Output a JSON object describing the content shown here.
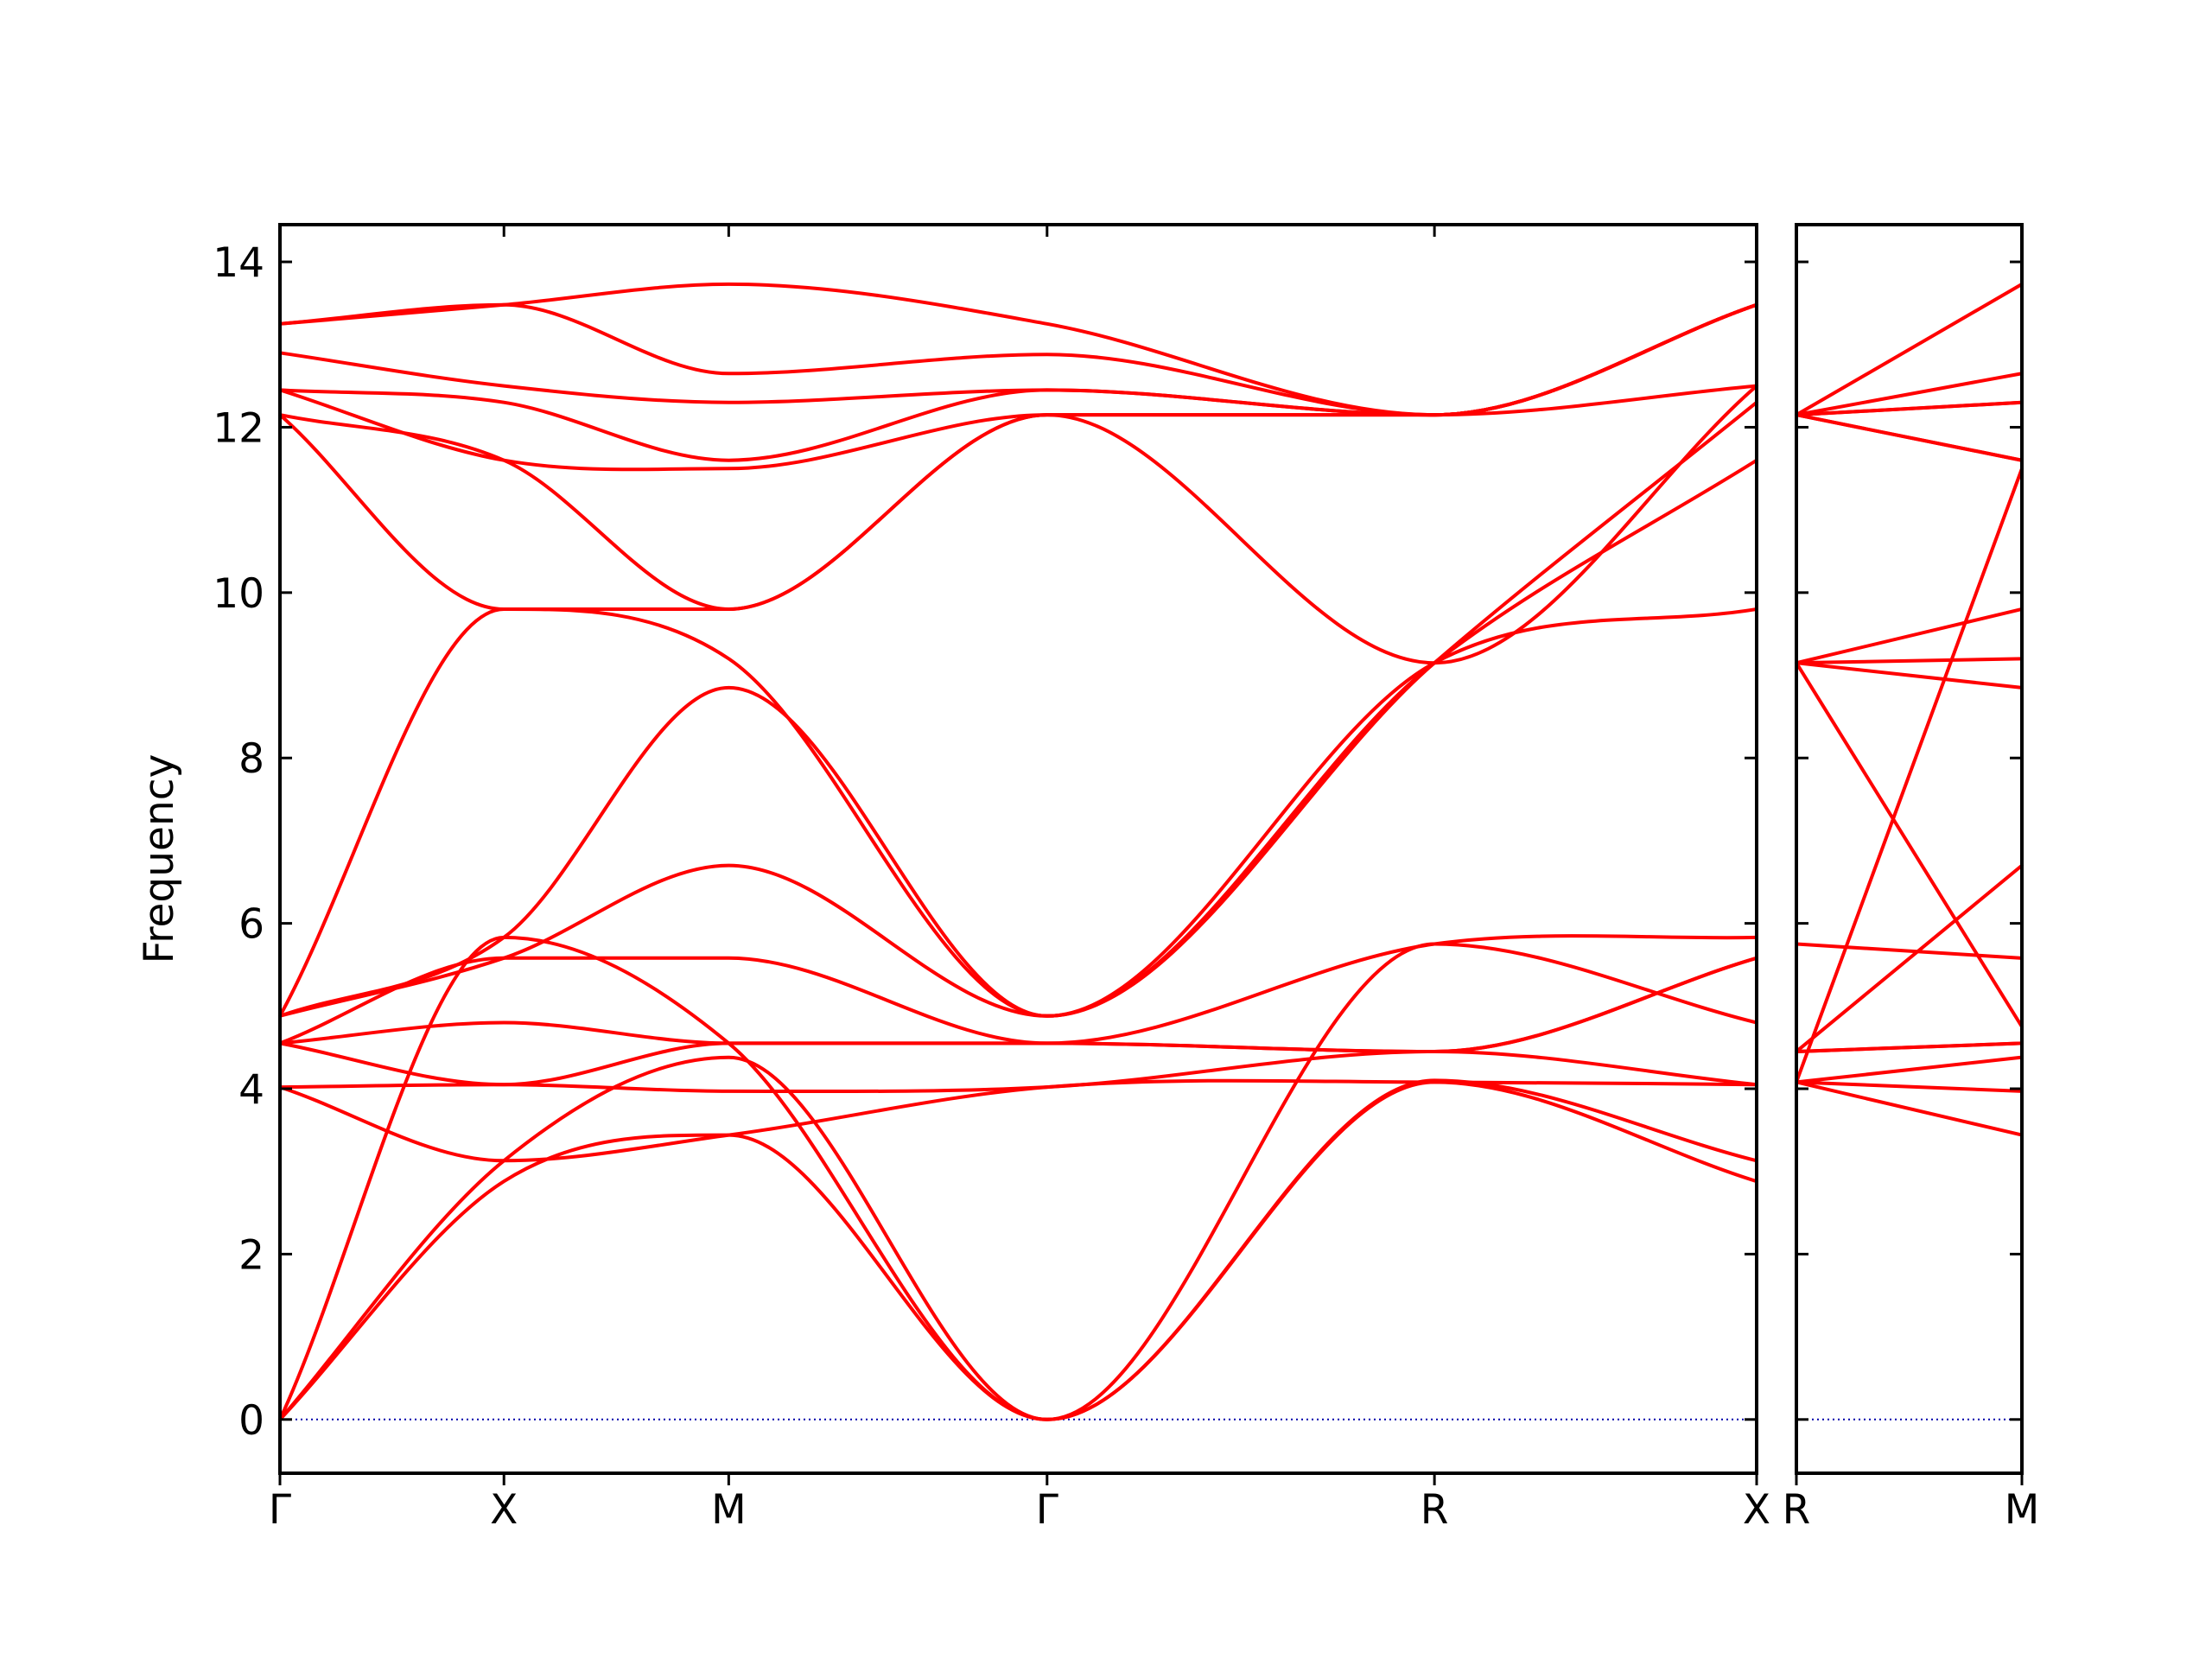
{
  "chart_data": {
    "type": "line",
    "ylabel": "Frequency",
    "xlabel": "",
    "title": "",
    "ylim": [
      -0.65,
      14.45
    ],
    "yticks": [
      0,
      2,
      4,
      6,
      8,
      10,
      12,
      14
    ],
    "line_color": "#ff0000",
    "zero_line_color": "#0000aa",
    "grid": false,
    "panels": [
      {
        "name": "main",
        "xlim": [
          0,
          3.85
        ],
        "high_symmetry_points": [
          {
            "label": "Γ",
            "x": 0
          },
          {
            "label": "X",
            "x": 0.584
          },
          {
            "label": "M",
            "x": 1.17
          },
          {
            "label": "Γ",
            "x": 2.0
          },
          {
            "label": "R",
            "x": 3.01
          },
          {
            "label": "X",
            "x": 3.85
          }
        ],
        "bands": [
          {
            "x": [
              0,
              0.584,
              1.17,
              2.0,
              3.01,
              3.85
            ],
            "y": [
              0,
              2.88,
              3.44,
              0,
              4.08,
              2.88
            ]
          },
          {
            "x": [
              0,
              0.584,
              1.17,
              2.0,
              3.01,
              3.85
            ],
            "y": [
              0,
              3.13,
              4.38,
              0,
              4.1,
              3.13
            ]
          },
          {
            "x": [
              0,
              0.584,
              1.17,
              2.0,
              3.01,
              3.85
            ],
            "y": [
              0,
              5.83,
              4.55,
              0,
              5.75,
              4.8
            ]
          },
          {
            "x": [
              0,
              0.584,
              1.17,
              2.0,
              3.01,
              3.85
            ],
            "y": [
              4.02,
              3.13,
              3.44,
              4.02,
              4.08,
              4.05
            ]
          },
          {
            "x": [
              0,
              0.584,
              1.17,
              2.0,
              3.01,
              3.85
            ],
            "y": [
              4.02,
              4.05,
              3.97,
              4.02,
              4.45,
              4.05
            ]
          },
          {
            "x": [
              0,
              0.584,
              1.17,
              2.0,
              3.01,
              3.85
            ],
            "y": [
              4.55,
              4.05,
              4.55,
              4.55,
              4.45,
              5.58
            ]
          },
          {
            "x": [
              0,
              0.584,
              1.17,
              2.0,
              3.01,
              3.85
            ],
            "y": [
              4.55,
              4.8,
              4.55,
              4.55,
              4.45,
              5.58
            ]
          },
          {
            "x": [
              0,
              0.584,
              1.17,
              2.0,
              3.01,
              3.85
            ],
            "y": [
              4.55,
              5.58,
              5.58,
              4.55,
              5.75,
              5.83
            ]
          },
          {
            "x": [
              0,
              0.584,
              1.17,
              2.0,
              3.01,
              3.85
            ],
            "y": [
              4.88,
              5.58,
              6.7,
              4.88,
              9.15,
              9.8
            ]
          },
          {
            "x": [
              0,
              0.584,
              1.17,
              2.0,
              3.01,
              3.85
            ],
            "y": [
              4.88,
              5.83,
              8.85,
              4.88,
              9.15,
              11.6
            ]
          },
          {
            "x": [
              0,
              0.584,
              1.17,
              2.0,
              3.01,
              3.85
            ],
            "y": [
              4.88,
              9.8,
              9.2,
              4.88,
              9.15,
              12.3
            ]
          },
          {
            "x": [
              0,
              0.584,
              1.17,
              2.0,
              3.01,
              3.85
            ],
            "y": [
              12.15,
              9.8,
              9.8,
              12.15,
              9.15,
              12.5
            ]
          },
          {
            "x": [
              0,
              0.584,
              1.17,
              2.0,
              3.01,
              3.85
            ],
            "y": [
              12.15,
              11.6,
              9.8,
              12.15,
              12.15,
              12.5
            ]
          },
          {
            "x": [
              0,
              0.584,
              1.17,
              2.0,
              3.01,
              3.85
            ],
            "y": [
              12.45,
              11.6,
              11.5,
              12.15,
              12.15,
              13.48
            ]
          },
          {
            "x": [
              0,
              0.584,
              1.17,
              2.0,
              3.01,
              3.85
            ],
            "y": [
              12.45,
              12.3,
              11.6,
              12.45,
              12.15,
              13.48
            ]
          },
          {
            "x": [
              0,
              0.584,
              1.17,
              2.0,
              3.01,
              3.85
            ],
            "y": [
              12.9,
              12.5,
              12.3,
              12.45,
              12.15,
              13.48
            ]
          },
          {
            "x": [
              0,
              0.584,
              1.17,
              2.0,
              3.01,
              3.85
            ],
            "y": [
              13.25,
              13.48,
              12.65,
              12.88,
              12.15,
              13.48
            ]
          },
          {
            "x": [
              0,
              0.584,
              1.17,
              2.0,
              3.01,
              3.85
            ],
            "y": [
              13.25,
              13.48,
              13.73,
              13.25,
              12.15,
              13.48
            ]
          }
        ]
      },
      {
        "name": "right",
        "xlim": [
          0,
          0.584
        ],
        "high_symmetry_points": [
          {
            "label": "R",
            "x": 0
          },
          {
            "label": "M",
            "x": 0.584
          }
        ],
        "bands": [
          {
            "x": [
              0,
              0.584
            ],
            "y": [
              4.08,
              3.44
            ]
          },
          {
            "x": [
              0,
              0.584
            ],
            "y": [
              4.08,
              3.97
            ]
          },
          {
            "x": [
              0,
              0.584
            ],
            "y": [
              4.08,
              4.38
            ]
          },
          {
            "x": [
              0,
              0.584
            ],
            "y": [
              4.45,
              4.55
            ]
          },
          {
            "x": [
              0,
              0.584
            ],
            "y": [
              4.45,
              4.55
            ]
          },
          {
            "x": [
              0,
              0.584
            ],
            "y": [
              4.45,
              6.7
            ]
          },
          {
            "x": [
              0,
              0.584
            ],
            "y": [
              5.75,
              5.58
            ]
          },
          {
            "x": [
              0,
              0.584
            ],
            "y": [
              9.15,
              4.75
            ]
          },
          {
            "x": [
              0,
              0.584
            ],
            "y": [
              9.15,
              8.85
            ]
          },
          {
            "x": [
              0,
              0.584
            ],
            "y": [
              9.15,
              9.2
            ]
          },
          {
            "x": [
              0,
              0.584
            ],
            "y": [
              9.15,
              9.8
            ]
          },
          {
            "x": [
              0,
              0.584
            ],
            "y": [
              4.08,
              11.5
            ]
          },
          {
            "x": [
              0,
              0.584
            ],
            "y": [
              12.15,
              11.6
            ]
          },
          {
            "x": [
              0,
              0.584
            ],
            "y": [
              12.15,
              11.6
            ]
          },
          {
            "x": [
              0,
              0.584
            ],
            "y": [
              12.15,
              12.3
            ]
          },
          {
            "x": [
              0,
              0.584
            ],
            "y": [
              12.15,
              12.65
            ]
          },
          {
            "x": [
              0,
              0.584
            ],
            "y": [
              12.15,
              13.73
            ]
          },
          {
            "x": [
              0,
              0.584
            ],
            "y": [
              12.15,
              12.3
            ]
          }
        ]
      }
    ]
  }
}
